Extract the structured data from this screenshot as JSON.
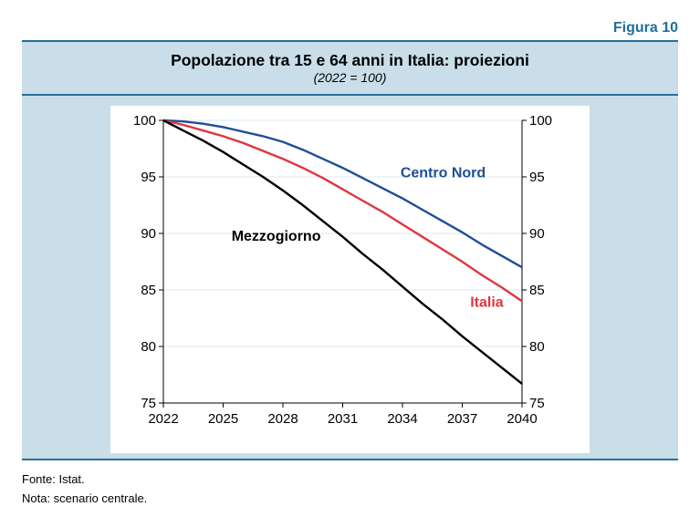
{
  "figure_label": "Figura 10",
  "chart_data": {
    "type": "line",
    "title": "Popolazione tra 15 e 64 anni in Italia: proiezioni",
    "subtitle": "(2022 = 100)",
    "xlabel": "",
    "ylabel": "",
    "xlim": [
      2022,
      2040
    ],
    "ylim": [
      75,
      100
    ],
    "x_ticks": [
      2022,
      2025,
      2028,
      2031,
      2034,
      2037,
      2040
    ],
    "y_ticks": [
      75,
      80,
      85,
      90,
      95,
      100
    ],
    "grid": true,
    "x": [
      2022,
      2023,
      2024,
      2025,
      2026,
      2027,
      2028,
      2029,
      2030,
      2031,
      2032,
      2033,
      2034,
      2035,
      2036,
      2037,
      2038,
      2039,
      2040
    ],
    "series": [
      {
        "name": "Centro Nord",
        "color": "#1f4e96",
        "values": [
          100,
          99.9,
          99.7,
          99.4,
          99.0,
          98.6,
          98.1,
          97.4,
          96.6,
          95.8,
          94.9,
          94.0,
          93.1,
          92.1,
          91.1,
          90.1,
          89.0,
          88.0,
          87.0
        ]
      },
      {
        "name": "Italia",
        "color": "#e0353f",
        "values": [
          100,
          99.6,
          99.1,
          98.6,
          98.0,
          97.3,
          96.6,
          95.8,
          94.9,
          93.9,
          92.9,
          91.9,
          90.8,
          89.7,
          88.6,
          87.5,
          86.3,
          85.2,
          84.0
        ]
      },
      {
        "name": "Mezzogiorno",
        "color": "#000000",
        "values": [
          100,
          99.1,
          98.2,
          97.2,
          96.1,
          95.0,
          93.8,
          92.5,
          91.1,
          89.7,
          88.2,
          86.8,
          85.3,
          83.8,
          82.4,
          80.9,
          79.5,
          78.1,
          76.7
        ]
      }
    ]
  },
  "notes": {
    "source": "Fonte: Istat.",
    "note": "Nota: scenario centrale."
  }
}
